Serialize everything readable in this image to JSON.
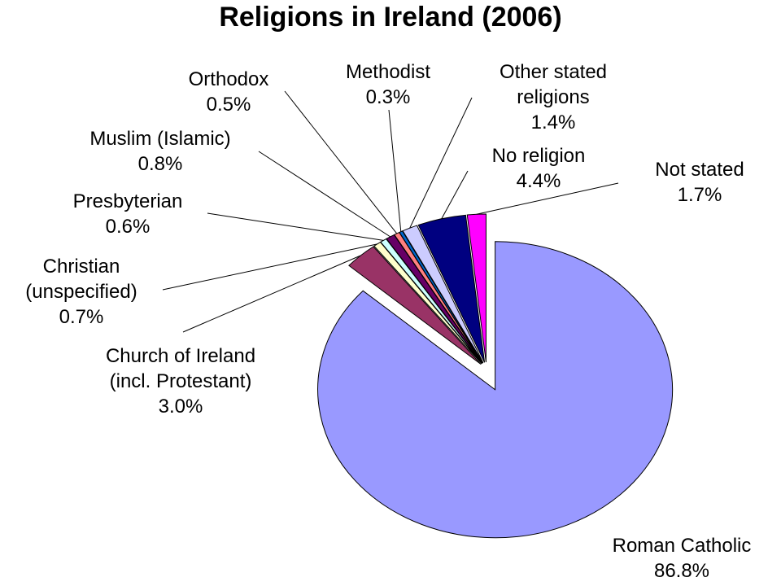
{
  "chart_data": {
    "type": "pie",
    "title": "Religions in Ireland (2006)",
    "categories": [
      "Roman Catholic",
      "Church of Ireland\n(incl. Protestant)",
      "Christian\n(unspecified)",
      "Presbyterian",
      "Muslim (Islamic)",
      "Orthodox",
      "Methodist",
      "Other stated\nreligions",
      "No religion",
      "Not stated"
    ],
    "values": [
      86.8,
      3.0,
      0.7,
      0.6,
      0.8,
      0.5,
      0.3,
      1.4,
      4.4,
      1.7
    ],
    "value_labels": [
      "86.8%",
      "3.0%",
      "0.7%",
      "0.6%",
      "0.8%",
      "0.5%",
      "0.3%",
      "1.4%",
      "4.4%",
      "1.7%"
    ],
    "colors": [
      "#9999ff",
      "#993366",
      "#ffffcc",
      "#ccffff",
      "#660066",
      "#ff8080",
      "#0066cc",
      "#ccccff",
      "#000080",
      "#ff00ff"
    ]
  }
}
